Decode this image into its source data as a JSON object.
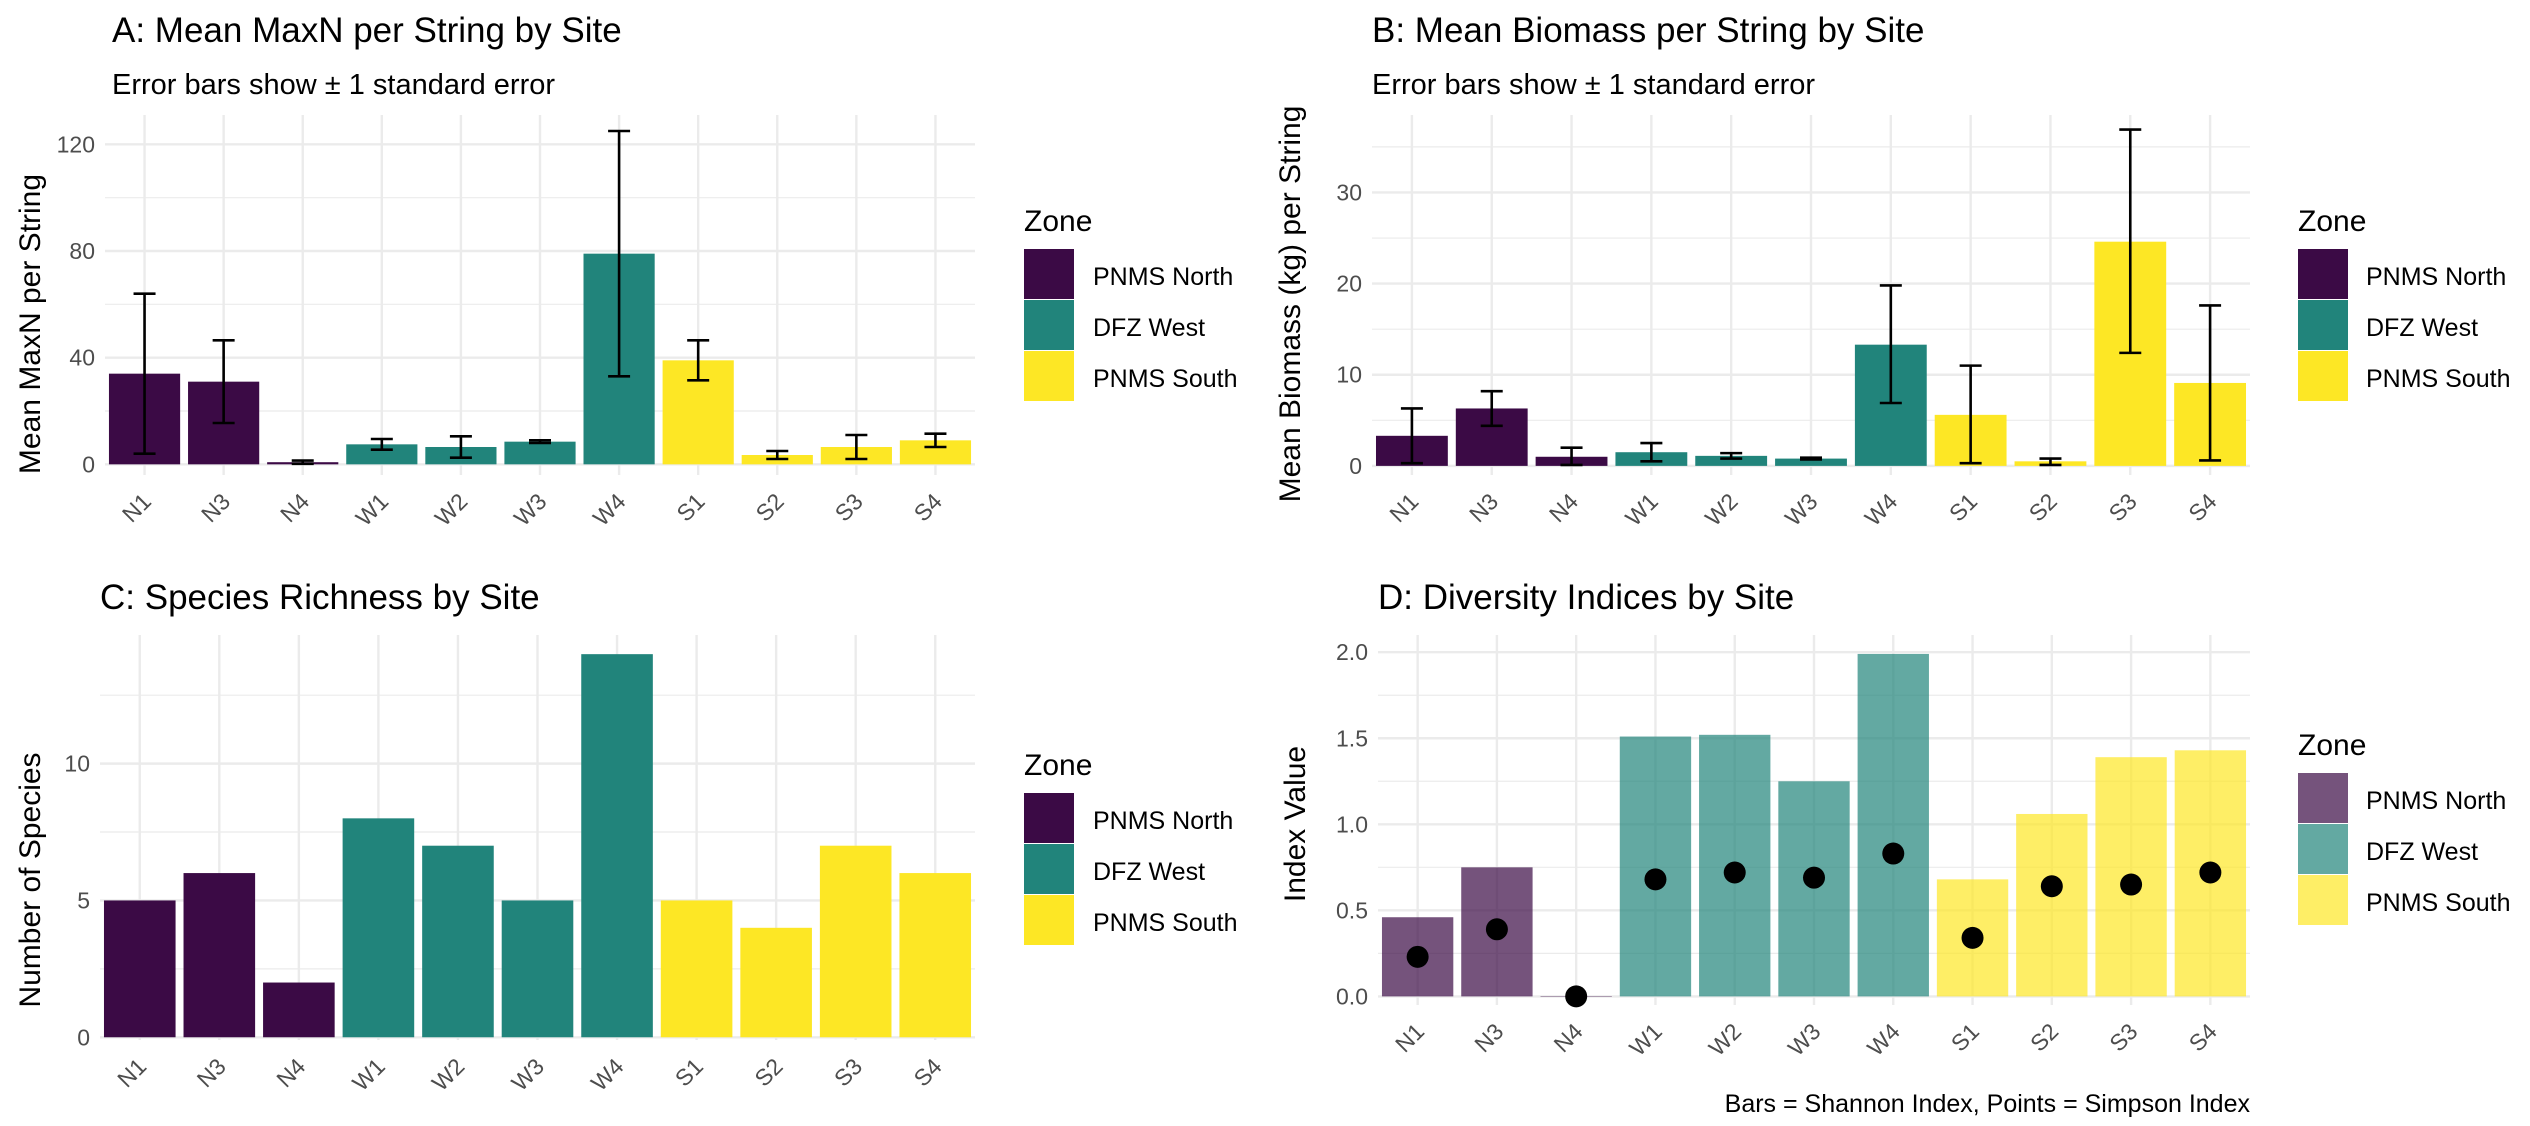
{
  "zone_colors": {
    "PNMS North": "#3b0a45",
    "DFZ West": "#21847b",
    "PNMS South": "#fde725"
  },
  "grid_color": "#ebebeb",
  "panels": [
    {
      "id": "A",
      "title": "A: Mean MaxN per String by Site",
      "subtitle": "Error bars show ± 1 standard error",
      "ylabel": "Mean MaxN per String",
      "legend_title": "Zone",
      "legend_items": [
        "PNMS North",
        "DFZ West",
        "PNMS South"
      ],
      "footnote": ""
    },
    {
      "id": "B",
      "title": "B: Mean Biomass per String by Site",
      "subtitle": "Error bars show ± 1 standard error",
      "ylabel": "Mean Biomass (kg) per String",
      "legend_title": "Zone",
      "legend_items": [
        "PNMS North",
        "DFZ West",
        "PNMS South"
      ],
      "footnote": ""
    },
    {
      "id": "C",
      "title": "C: Species Richness by Site",
      "subtitle": "",
      "ylabel": "Number of Species",
      "legend_title": "Zone",
      "legend_items": [
        "PNMS North",
        "DFZ West",
        "PNMS South"
      ],
      "footnote": ""
    },
    {
      "id": "D",
      "title": "D: Diversity Indices by Site",
      "subtitle": "",
      "ylabel": "Index Value",
      "legend_title": "Zone",
      "legend_items": [
        "PNMS North",
        "DFZ West",
        "PNMS South"
      ],
      "footnote": "Bars = Shannon Index, Points = Simpson Index"
    }
  ],
  "chart_data": [
    {
      "panel": "A",
      "type": "bar",
      "categories": [
        "N1",
        "N3",
        "N4",
        "W1",
        "W2",
        "W3",
        "W4",
        "S1",
        "S2",
        "S3",
        "S4"
      ],
      "zones": [
        "PNMS North",
        "PNMS North",
        "PNMS North",
        "DFZ West",
        "DFZ West",
        "DFZ West",
        "DFZ West",
        "PNMS South",
        "PNMS South",
        "PNMS South",
        "PNMS South"
      ],
      "values": [
        34,
        31,
        0.8,
        7.5,
        6.5,
        8.5,
        79,
        39,
        3.5,
        6.5,
        9
      ],
      "error_low": [
        4,
        15.5,
        0.2,
        5.5,
        2.5,
        8,
        33,
        31.5,
        2,
        2,
        6.5
      ],
      "error_high": [
        64,
        46.5,
        1.4,
        9.5,
        10.5,
        9,
        125,
        46.5,
        5,
        11,
        11.5
      ],
      "yticks": [
        0,
        40,
        80,
        120
      ],
      "ylim": [
        -4,
        131
      ],
      "grid": true,
      "legend_position": "right"
    },
    {
      "panel": "B",
      "type": "bar",
      "categories": [
        "N1",
        "N3",
        "N4",
        "W1",
        "W2",
        "W3",
        "W4",
        "S1",
        "S2",
        "S3",
        "S4"
      ],
      "zones": [
        "PNMS North",
        "PNMS North",
        "PNMS North",
        "DFZ West",
        "DFZ West",
        "DFZ West",
        "DFZ West",
        "PNMS South",
        "PNMS South",
        "PNMS South",
        "PNMS South"
      ],
      "values": [
        3.3,
        6.3,
        1.0,
        1.5,
        1.1,
        0.8,
        13.3,
        5.6,
        0.5,
        24.6,
        9.1
      ],
      "error_low": [
        0.3,
        4.4,
        0.1,
        0.5,
        0.8,
        0.7,
        6.9,
        0.3,
        0.1,
        12.4,
        0.6
      ],
      "error_high": [
        6.3,
        8.2,
        2.0,
        2.5,
        1.4,
        0.9,
        19.8,
        11.0,
        0.8,
        36.9,
        17.6
      ],
      "yticks": [
        0,
        10,
        20,
        30
      ],
      "ylim": [
        -1,
        38.5
      ],
      "grid": true,
      "legend_position": "right"
    },
    {
      "panel": "C",
      "type": "bar",
      "categories": [
        "N1",
        "N3",
        "N4",
        "W1",
        "W2",
        "W3",
        "W4",
        "S1",
        "S2",
        "S3",
        "S4"
      ],
      "zones": [
        "PNMS North",
        "PNMS North",
        "PNMS North",
        "DFZ West",
        "DFZ West",
        "DFZ West",
        "DFZ West",
        "PNMS South",
        "PNMS South",
        "PNMS South",
        "PNMS South"
      ],
      "values": [
        5,
        6,
        2,
        8,
        7,
        5,
        14,
        5,
        4,
        7,
        6
      ],
      "yticks": [
        0,
        5,
        10
      ],
      "ylim": [
        -0.1,
        14.7
      ],
      "grid": true,
      "legend_position": "right"
    },
    {
      "panel": "D",
      "type": "bar",
      "categories": [
        "N1",
        "N3",
        "N4",
        "W1",
        "W2",
        "W3",
        "W4",
        "S1",
        "S2",
        "S3",
        "S4"
      ],
      "zones": [
        "PNMS North",
        "PNMS North",
        "PNMS North",
        "DFZ West",
        "DFZ West",
        "DFZ West",
        "DFZ West",
        "PNMS South",
        "PNMS South",
        "PNMS South",
        "PNMS South"
      ],
      "series": [
        {
          "name": "Shannon Index",
          "kind": "bar",
          "values": [
            0.46,
            0.75,
            0.0,
            1.51,
            1.52,
            1.25,
            1.99,
            0.68,
            1.06,
            1.39,
            1.43
          ]
        },
        {
          "name": "Simpson Index",
          "kind": "point",
          "values": [
            0.23,
            0.39,
            0.0,
            0.68,
            0.72,
            0.69,
            0.83,
            0.34,
            0.64,
            0.65,
            0.72
          ]
        }
      ],
      "yticks": [
        0.0,
        0.5,
        1.0,
        1.5,
        2.0
      ],
      "ylim": [
        -0.05,
        2.1
      ],
      "grid": true,
      "legend_position": "right"
    }
  ]
}
